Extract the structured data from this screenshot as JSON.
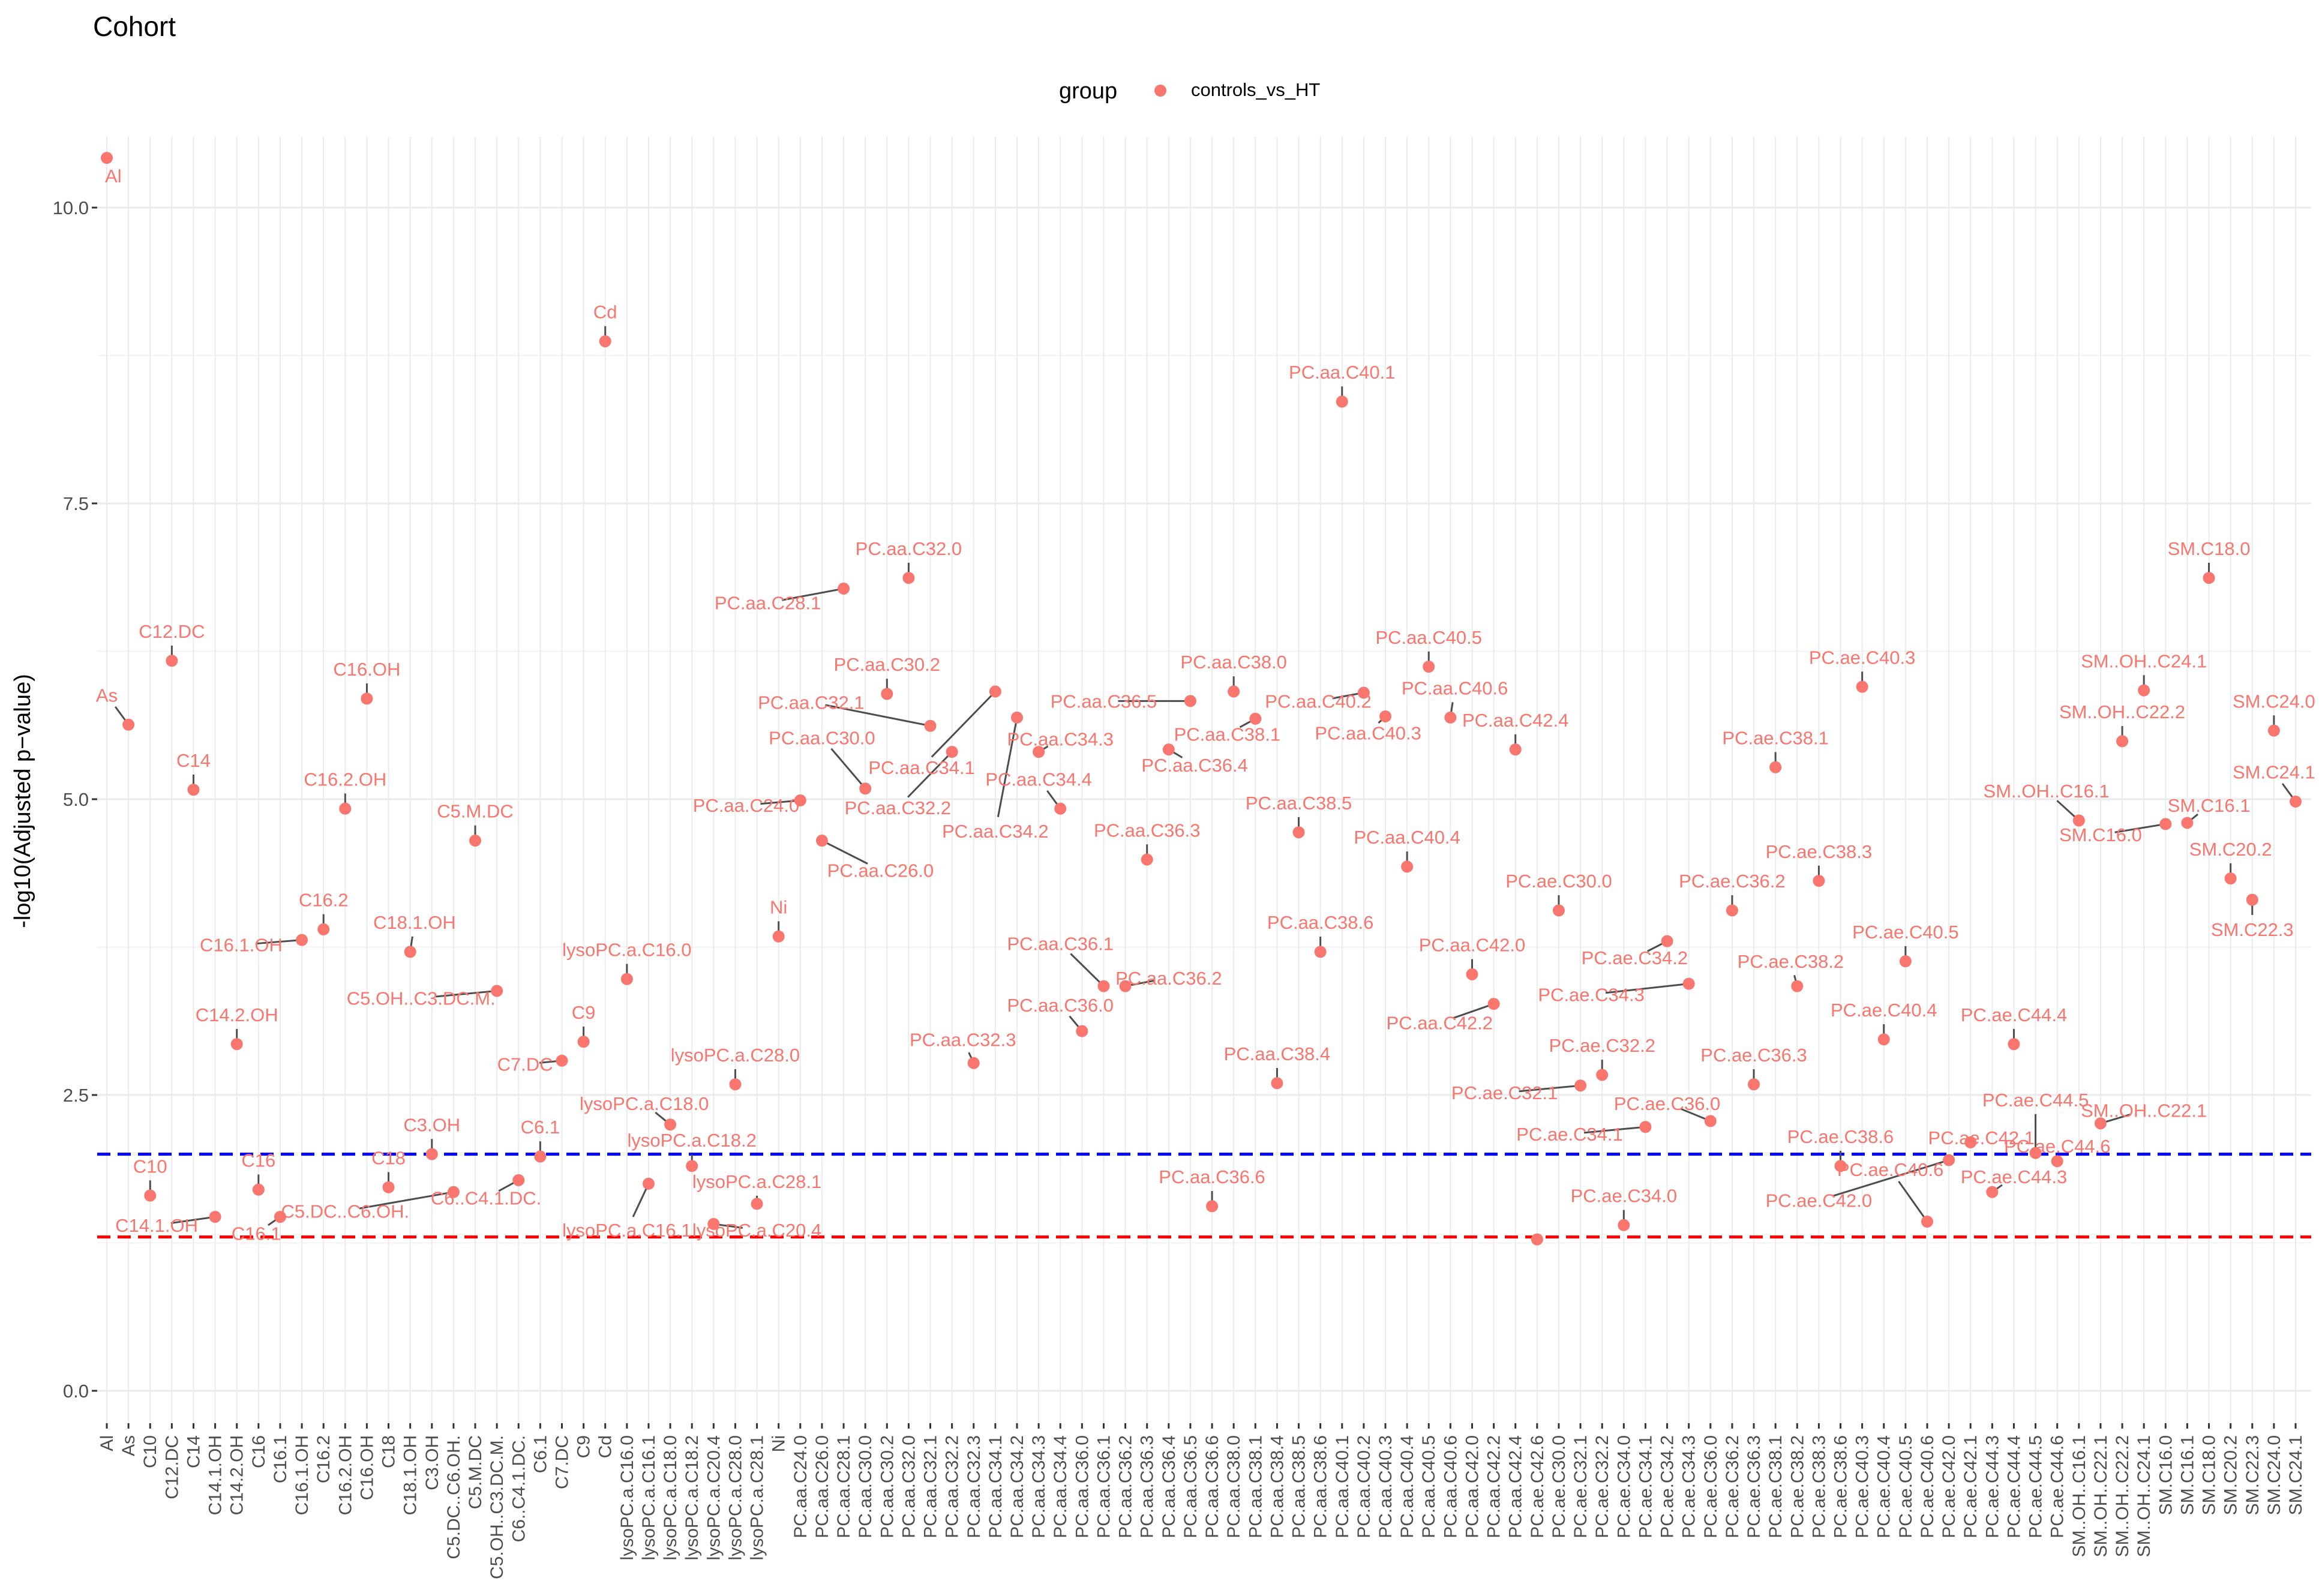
{
  "chart_data": {
    "type": "scatter",
    "title": "Cohort",
    "ylabel": "-log10(Adjusted p−value)",
    "xlabel": "",
    "ylim": [
      0,
      10.5
    ],
    "yticks": [
      0.0,
      2.5,
      5.0,
      7.5,
      10.0
    ],
    "ytick_labels": [
      "0.0",
      "2.5",
      "5.0",
      "7.5",
      "10.0"
    ],
    "grid": true,
    "legend": {
      "position": "top",
      "title": "group",
      "entries": [
        "controls_vs_HT"
      ]
    },
    "colors": {
      "points": "#f8766d",
      "labels": "#f8766d",
      "threshold_blue": "#0000ff",
      "threshold_red": "#ff0000"
    },
    "thresholds": [
      {
        "value": 2.0,
        "color": "#0000ff",
        "style": "dashed"
      },
      {
        "value": 1.3,
        "color": "#ff0000",
        "style": "dashed"
      }
    ],
    "categories": [
      "Al",
      "As",
      "C10",
      "C12.DC",
      "C14",
      "C14.1.OH",
      "C14.2.OH",
      "C16",
      "C16.1",
      "C16.1.OH",
      "C16.2",
      "C16.2.OH",
      "C16.OH",
      "C18",
      "C18.1.OH",
      "C3.OH",
      "C5.DC..C6.OH.",
      "C5.M.DC",
      "C5.OH..C3.DC.M.",
      "C6..C4.1.DC.",
      "C6.1",
      "C7.DC",
      "C9",
      "Cd",
      "lysoPC.a.C16.0",
      "lysoPC.a.C16.1",
      "lysoPC.a.C18.0",
      "lysoPC.a.C18.2",
      "lysoPC.a.C20.4",
      "lysoPC.a.C28.0",
      "lysoPC.a.C28.1",
      "Ni",
      "PC.aa.C24.0",
      "PC.aa.C26.0",
      "PC.aa.C28.1",
      "PC.aa.C30.0",
      "PC.aa.C30.2",
      "PC.aa.C32.0",
      "PC.aa.C32.1",
      "PC.aa.C32.2",
      "PC.aa.C32.3",
      "PC.aa.C34.1",
      "PC.aa.C34.2",
      "PC.aa.C34.3",
      "PC.aa.C34.4",
      "PC.aa.C36.0",
      "PC.aa.C36.1",
      "PC.aa.C36.2",
      "PC.aa.C36.3",
      "PC.aa.C36.4",
      "PC.aa.C36.5",
      "PC.aa.C36.6",
      "PC.aa.C38.0",
      "PC.aa.C38.1",
      "PC.aa.C38.4",
      "PC.aa.C38.5",
      "PC.aa.C38.6",
      "PC.aa.C40.1",
      "PC.aa.C40.2",
      "PC.aa.C40.3",
      "PC.aa.C40.4",
      "PC.aa.C40.5",
      "PC.aa.C40.6",
      "PC.aa.C42.0",
      "PC.aa.C42.2",
      "PC.aa.C42.4",
      "PC.ae.C42.6",
      "PC.ae.C30.0",
      "PC.ae.C32.1",
      "PC.ae.C32.2",
      "PC.ae.C34.0",
      "PC.ae.C34.1",
      "PC.ae.C34.2",
      "PC.ae.C34.3",
      "PC.ae.C36.0",
      "PC.ae.C36.2",
      "PC.ae.C36.3",
      "PC.ae.C38.1",
      "PC.ae.C38.2",
      "PC.ae.C38.3",
      "PC.ae.C38.6",
      "PC.ae.C40.3",
      "PC.ae.C40.4",
      "PC.ae.C40.5",
      "PC.ae.C40.6",
      "PC.ae.C42.0",
      "PC.ae.C42.1",
      "PC.ae.C44.3",
      "PC.ae.C44.4",
      "PC.ae.C44.5",
      "PC.ae.C44.6",
      "SM..OH..C16.1",
      "SM..OH..C22.1",
      "SM..OH..C22.2",
      "SM..OH..C24.1",
      "SM.C16.0",
      "SM.C16.1",
      "SM.C18.0",
      "SM.C20.2",
      "SM.C22.3",
      "SM.C24.0",
      "SM.C24.1"
    ],
    "x_tick_labels": [
      "Al",
      "As",
      "C10",
      "C12.DC",
      "C14",
      "C14.1.OH",
      "C14.2.OH",
      "C16",
      "C16.1",
      "C16.1.OH",
      "C16.2",
      "C16.2.OH",
      "C16.OH",
      "C18",
      "C18.1.OH",
      "C3.OH",
      "C5.DC..C6.OH.",
      "C5.M.DC",
      "C5.OH..C3.DC.M.",
      "C6..C4.1.DC.",
      "C6.1",
      "C7.DC",
      "C9",
      "Cd",
      "lysoPC.a.C16.0",
      "lysoPC.a.C16.1",
      "lysoPC.a.C18.0",
      "lysoPC.a.C18.2",
      "lysoPC.a.C20.4",
      "lysoPC.a.C28.0",
      "lysoPC.a.C28.1",
      "Ni",
      "PC.aa.C24.0",
      "PC.aa.C26.0",
      "PC.aa.C28.1",
      "PC.aa.C30.0",
      "PC.aa.C30.2",
      "PC.aa.C32.0",
      "PC.aa.C32.1",
      "PC.aa.C32.2",
      "PC.aa.C32.3",
      "PC.aa.C34.1",
      "PC.aa.C34.2",
      "PC.aa.C34.3",
      "PC.aa.C34.4",
      "PC.aa.C36.0",
      "PC.aa.C36.1",
      "PC.aa.C36.2",
      "PC.aa.C36.3",
      "PC.aa.C36.4",
      "PC.aa.C36.5",
      "PC.aa.C36.6",
      "PC.aa.C38.0",
      "PC.aa.C38.1",
      "PC.aa.C38.4",
      "PC.aa.C38.5",
      "PC.aa.C38.6",
      "PC.aa.C40.1",
      "PC.aa.C40.2",
      "PC.aa.C40.3",
      "PC.aa.C40.4",
      "PC.aa.C40.5",
      "PC.aa.C40.6",
      "PC.aa.C42.0",
      "PC.aa.C42.2",
      "PC.aa.C42.4",
      "PC.ae.C42.6",
      "PC.ae.C30.0",
      "PC.ae.C32.1",
      "PC.ae.C32.2",
      "PC.ae.C34.0",
      "PC.ae.C34.1",
      "PC.ae.C34.2",
      "PC.ae.C34.3",
      "PC.ae.C36.0",
      "PC.ae.C36.2",
      "PC.ae.C36.3",
      "PC.ae.C38.1",
      "PC.ae.C38.2",
      "PC.ae.C38.3",
      "PC.ae.C38.6",
      "PC.ae.C40.3",
      "PC.ae.C40.4",
      "PC.ae.C40.5",
      "PC.ae.C40.6",
      "PC.ae.C42.0",
      "PC.ae.C42.1",
      "PC.ae.C44.3",
      "PC.ae.C44.4",
      "PC.ae.C44.5",
      "PC.ae.C44.6",
      "SM..OH..C16.1",
      "SM..OH..C22.1",
      "SM..OH..C22.2",
      "SM..OH..C24.1",
      "SM.C16.0",
      "SM.C16.1",
      "SM.C18.0",
      "SM.C20.2",
      "SM.C22.3",
      "SM.C24.0",
      "SM.C24.1"
    ],
    "series": [
      {
        "values": [
          10.42,
          5.63,
          1.65,
          6.17,
          5.08,
          1.47,
          2.93,
          1.7,
          1.47,
          3.81,
          3.9,
          4.92,
          5.85,
          1.72,
          3.71,
          2.0,
          1.68,
          4.65,
          3.38,
          1.78,
          1.98,
          2.79,
          2.95,
          8.87,
          3.48,
          1.75,
          2.25,
          1.9,
          1.41,
          2.59,
          1.58,
          3.84,
          4.99,
          4.65,
          6.78,
          5.09,
          5.89,
          6.87,
          5.62,
          5.4,
          2.77,
          5.91,
          5.69,
          5.4,
          4.92,
          3.04,
          3.42,
          3.42,
          4.49,
          5.42,
          5.83,
          1.56,
          5.91,
          5.68,
          2.6,
          4.72,
          3.71,
          8.36,
          5.9,
          5.7,
          4.43,
          6.12,
          5.69,
          3.52,
          3.27,
          5.42,
          1.28,
          4.06,
          2.58,
          2.67,
          1.4,
          2.23,
          3.8,
          3.44,
          2.28,
          4.06,
          2.59,
          5.27,
          3.42,
          4.31,
          1.9,
          5.95,
          2.97,
          3.63,
          1.43,
          1.95,
          2.1,
          1.68,
          2.93,
          2.01,
          1.94,
          4.82,
          2.26,
          5.49,
          5.92,
          4.79,
          4.8,
          6.87,
          4.33,
          4.15,
          5.58,
          4.98
        ]
      }
    ],
    "point_labels": [
      {
        "text": "Al",
        "i": 0,
        "lx": 0.3,
        "ly": 10.27
      },
      {
        "text": "As",
        "i": 1,
        "lx": 0.0,
        "ly": 5.88
      },
      {
        "text": "C10",
        "i": 2,
        "lx": 2.0,
        "ly": 1.9
      },
      {
        "text": "C12.DC",
        "i": 3,
        "lx": 3.0,
        "ly": 6.42
      },
      {
        "text": "C14",
        "i": 4,
        "lx": 4.0,
        "ly": 5.33
      },
      {
        "text": "C14.1.OH",
        "i": 5,
        "lx": 2.3,
        "ly": 1.4
      },
      {
        "text": "C14.2.OH",
        "i": 6,
        "lx": 6.0,
        "ly": 3.18
      },
      {
        "text": "C16",
        "i": 7,
        "lx": 7.0,
        "ly": 1.95
      },
      {
        "text": "C16.1",
        "i": 8,
        "lx": 6.9,
        "ly": 1.33
      },
      {
        "text": "C16.1.OH",
        "i": 9,
        "lx": 6.2,
        "ly": 3.77
      },
      {
        "text": "C16.2",
        "i": 10,
        "lx": 10.0,
        "ly": 4.15
      },
      {
        "text": "C16.2.OH",
        "i": 11,
        "lx": 11.0,
        "ly": 5.17
      },
      {
        "text": "C16.OH",
        "i": 12,
        "lx": 12.0,
        "ly": 6.1
      },
      {
        "text": "C18",
        "i": 13,
        "lx": 13.0,
        "ly": 1.97
      },
      {
        "text": "C18.1.OH",
        "i": 14,
        "lx": 14.2,
        "ly": 3.96
      },
      {
        "text": "C3.OH",
        "i": 15,
        "lx": 15.0,
        "ly": 2.25
      },
      {
        "text": "C5.DC..C6.OH.",
        "i": 16,
        "lx": 11.0,
        "ly": 1.52
      },
      {
        "text": "C5.M.DC",
        "i": 17,
        "lx": 17.0,
        "ly": 4.9
      },
      {
        "text": "C5.OH..C3.DC.M.",
        "i": 18,
        "lx": 14.5,
        "ly": 3.32
      },
      {
        "text": "C6..C4.1.DC.",
        "i": 19,
        "lx": 17.5,
        "ly": 1.63
      },
      {
        "text": "C6.1",
        "i": 20,
        "lx": 20.0,
        "ly": 2.23
      },
      {
        "text": "C7.DC",
        "i": 21,
        "lx": 19.3,
        "ly": 2.76
      },
      {
        "text": "C9",
        "i": 22,
        "lx": 22.0,
        "ly": 3.2
      },
      {
        "text": "Cd",
        "i": 23,
        "lx": 23.0,
        "ly": 9.12
      },
      {
        "text": "lysoPC.a.C16.0",
        "i": 24,
        "lx": 24.0,
        "ly": 3.73
      },
      {
        "text": "lysoPC.a.C16.1",
        "i": 25,
        "lx": 24.0,
        "ly": 1.36
      },
      {
        "text": "lysoPC.a.C18.0",
        "i": 26,
        "lx": 24.8,
        "ly": 2.43
      },
      {
        "text": "lysoPC.a.C18.2",
        "i": 27,
        "lx": 27.0,
        "ly": 2.12
      },
      {
        "text": "lysoPC.a.C20.4",
        "i": 28,
        "lx": 30.0,
        "ly": 1.36
      },
      {
        "text": "lysoPC.a.C28.0",
        "i": 29,
        "lx": 29.0,
        "ly": 2.84
      },
      {
        "text": "lysoPC.a.C28.1",
        "i": 30,
        "lx": 30.0,
        "ly": 1.77
      },
      {
        "text": "Ni",
        "i": 31,
        "lx": 31.0,
        "ly": 4.09
      },
      {
        "text": "PC.aa.C24.0",
        "i": 32,
        "lx": 29.5,
        "ly": 4.95
      },
      {
        "text": "PC.aa.C26.0",
        "i": 33,
        "lx": 35.7,
        "ly": 4.4
      },
      {
        "text": "PC.aa.C28.1",
        "i": 34,
        "lx": 30.5,
        "ly": 6.66
      },
      {
        "text": "PC.aa.C30.0",
        "i": 35,
        "lx": 33.0,
        "ly": 5.52
      },
      {
        "text": "PC.aa.C30.2",
        "i": 36,
        "lx": 36.0,
        "ly": 6.14
      },
      {
        "text": "PC.aa.C32.0",
        "i": 37,
        "lx": 37.0,
        "ly": 7.12
      },
      {
        "text": "PC.aa.C32.1",
        "i": 38,
        "lx": 32.5,
        "ly": 5.82
      },
      {
        "text": "PC.aa.C32.2",
        "i": 39,
        "lx": 36.5,
        "ly": 4.93
      },
      {
        "text": "PC.aa.C32.3",
        "i": 40,
        "lx": 39.5,
        "ly": 2.97
      },
      {
        "text": "PC.aa.C34.1",
        "i": 41,
        "lx": 37.6,
        "ly": 5.27
      },
      {
        "text": "PC.aa.C34.2",
        "i": 42,
        "lx": 41.0,
        "ly": 4.73
      },
      {
        "text": "PC.aa.C34.3",
        "i": 43,
        "lx": 44.0,
        "ly": 5.51
      },
      {
        "text": "PC.aa.C34.4",
        "i": 44,
        "lx": 43.0,
        "ly": 5.17
      },
      {
        "text": "PC.aa.C36.0",
        "i": 45,
        "lx": 44.0,
        "ly": 3.26
      },
      {
        "text": "PC.aa.C36.1",
        "i": 46,
        "lx": 44.0,
        "ly": 3.78
      },
      {
        "text": "PC.aa.C36.2",
        "i": 47,
        "lx": 49.0,
        "ly": 3.49
      },
      {
        "text": "PC.aa.C36.3",
        "i": 48,
        "lx": 48.0,
        "ly": 4.74
      },
      {
        "text": "PC.aa.C36.4",
        "i": 49,
        "lx": 50.2,
        "ly": 5.29
      },
      {
        "text": "PC.aa.C36.5",
        "i": 50,
        "lx": 46.0,
        "ly": 5.83
      },
      {
        "text": "PC.aa.C36.6",
        "i": 51,
        "lx": 51.0,
        "ly": 1.81
      },
      {
        "text": "PC.aa.C38.0",
        "i": 52,
        "lx": 52.0,
        "ly": 6.16
      },
      {
        "text": "PC.aa.C38.1",
        "i": 53,
        "lx": 51.7,
        "ly": 5.55
      },
      {
        "text": "PC.aa.C38.4",
        "i": 54,
        "lx": 54.0,
        "ly": 2.85
      },
      {
        "text": "PC.aa.C38.5",
        "i": 55,
        "lx": 55.0,
        "ly": 4.97
      },
      {
        "text": "PC.aa.C38.6",
        "i": 56,
        "lx": 56.0,
        "ly": 3.96
      },
      {
        "text": "PC.aa.C40.1",
        "i": 57,
        "lx": 57.0,
        "ly": 8.61
      },
      {
        "text": "PC.aa.C40.2",
        "i": 58,
        "lx": 55.9,
        "ly": 5.83
      },
      {
        "text": "PC.aa.C40.3",
        "i": 59,
        "lx": 58.2,
        "ly": 5.56
      },
      {
        "text": "PC.aa.C40.4",
        "i": 60,
        "lx": 60.0,
        "ly": 4.68
      },
      {
        "text": "PC.aa.C40.5",
        "i": 61,
        "lx": 61.0,
        "ly": 6.37
      },
      {
        "text": "PC.aa.C40.6",
        "i": 62,
        "lx": 62.2,
        "ly": 5.94
      },
      {
        "text": "PC.aa.C42.0",
        "i": 63,
        "lx": 63.0,
        "ly": 3.77
      },
      {
        "text": "PC.aa.C42.2",
        "i": 64,
        "lx": 61.5,
        "ly": 3.11
      },
      {
        "text": "PC.aa.C42.4",
        "i": 65,
        "lx": 65.0,
        "ly": 5.67
      },
      {
        "text": "PC.ae.C30.0",
        "i": 67,
        "lx": 67.0,
        "ly": 4.31
      },
      {
        "text": "PC.ae.C32.1",
        "i": 68,
        "lx": 64.5,
        "ly": 2.52
      },
      {
        "text": "PC.ae.C32.2",
        "i": 69,
        "lx": 69.0,
        "ly": 2.92
      },
      {
        "text": "PC.ae.C34.0",
        "i": 70,
        "lx": 70.0,
        "ly": 1.65
      },
      {
        "text": "PC.ae.C34.1",
        "i": 71,
        "lx": 67.5,
        "ly": 2.17
      },
      {
        "text": "PC.ae.C34.2",
        "i": 72,
        "lx": 70.5,
        "ly": 3.66
      },
      {
        "text": "PC.ae.C34.3",
        "i": 73,
        "lx": 68.5,
        "ly": 3.35
      },
      {
        "text": "PC.ae.C36.0",
        "i": 74,
        "lx": 72.0,
        "ly": 2.43
      },
      {
        "text": "PC.ae.C36.2",
        "i": 75,
        "lx": 75.0,
        "ly": 4.31
      },
      {
        "text": "PC.ae.C36.3",
        "i": 76,
        "lx": 76.0,
        "ly": 2.84
      },
      {
        "text": "PC.ae.C38.1",
        "i": 77,
        "lx": 77.0,
        "ly": 5.52
      },
      {
        "text": "PC.ae.C38.2",
        "i": 78,
        "lx": 77.7,
        "ly": 3.63
      },
      {
        "text": "PC.ae.C38.3",
        "i": 79,
        "lx": 79.0,
        "ly": 4.56
      },
      {
        "text": "PC.ae.C38.6",
        "i": 80,
        "lx": 80.0,
        "ly": 2.15
      },
      {
        "text": "PC.ae.C40.3",
        "i": 81,
        "lx": 81.0,
        "ly": 6.2
      },
      {
        "text": "PC.ae.C40.4",
        "i": 82,
        "lx": 82.0,
        "ly": 3.22
      },
      {
        "text": "PC.ae.C40.5",
        "i": 83,
        "lx": 83.0,
        "ly": 3.88
      },
      {
        "text": "PC.ae.C40.6",
        "i": 84,
        "lx": 82.3,
        "ly": 1.87
      },
      {
        "text": "PC.ae.C42.0",
        "i": 85,
        "lx": 79.0,
        "ly": 1.61
      },
      {
        "text": "PC.ae.C42.1",
        "i": 86,
        "lx": 86.5,
        "ly": 2.14
      },
      {
        "text": "PC.ae.C44.3",
        "i": 87,
        "lx": 88.0,
        "ly": 1.81
      },
      {
        "text": "PC.ae.C44.4",
        "i": 88,
        "lx": 88.0,
        "ly": 3.18
      },
      {
        "text": "PC.ae.C44.5",
        "i": 89,
        "lx": 89.0,
        "ly": 2.46
      },
      {
        "text": "PC.ae.C44.6",
        "i": 90,
        "lx": 90.0,
        "ly": 2.07
      },
      {
        "text": "SM..OH..C16.1",
        "i": 91,
        "lx": 89.5,
        "ly": 5.07
      },
      {
        "text": "SM..OH..C22.1",
        "i": 92,
        "lx": 94.0,
        "ly": 2.37
      },
      {
        "text": "SM..OH..C22.2",
        "i": 93,
        "lx": 93.0,
        "ly": 5.74
      },
      {
        "text": "SM..OH..C24.1",
        "i": 94,
        "lx": 94.0,
        "ly": 6.17
      },
      {
        "text": "SM.C16.0",
        "i": 95,
        "lx": 92.0,
        "ly": 4.7
      },
      {
        "text": "SM.C16.1",
        "i": 96,
        "lx": 97.0,
        "ly": 4.95
      },
      {
        "text": "SM.C18.0",
        "i": 97,
        "lx": 97.0,
        "ly": 7.12
      },
      {
        "text": "SM.C20.2",
        "i": 98,
        "lx": 98.0,
        "ly": 4.58
      },
      {
        "text": "SM.C22.3",
        "i": 99,
        "lx": 99.0,
        "ly": 3.9
      },
      {
        "text": "SM.C24.0",
        "i": 100,
        "lx": 100.0,
        "ly": 5.83
      },
      {
        "text": "SM.C24.1",
        "i": 101,
        "lx": 100.0,
        "ly": 5.23
      }
    ]
  }
}
